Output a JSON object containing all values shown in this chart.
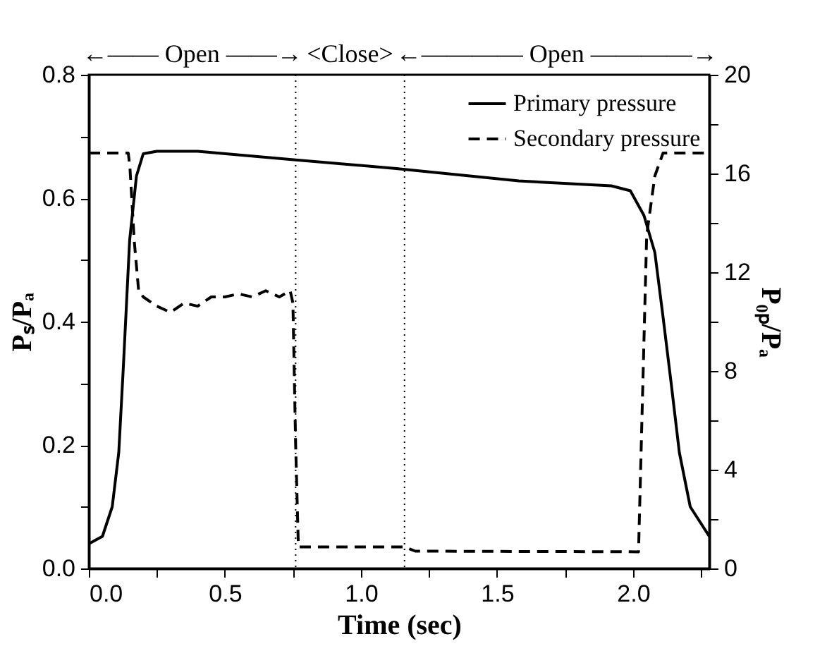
{
  "chart_data": {
    "type": "line",
    "xlabel": "Time (sec)",
    "ylabel": "Pₛ/Pₐ",
    "y2label": "P₀ₚ/Pₐ",
    "xlim": [
      0,
      2.28
    ],
    "xticks": [
      {
        "value": 0,
        "label": "0.0"
      },
      {
        "value": 0.25,
        "label": null
      },
      0.5,
      {
        "value": 0.75,
        "label": null
      },
      {
        "value": 1,
        "label": "1.0"
      },
      {
        "value": 1.25,
        "label": null
      },
      1.5,
      {
        "value": 1.75,
        "label": null
      },
      {
        "value": 2,
        "label": "2.0"
      },
      {
        "value": 2.25,
        "label": null
      }
    ],
    "ylim": [
      0,
      0.8
    ],
    "yticks": [
      {
        "value": 0,
        "label": "0.0"
      },
      {
        "value": 0.1,
        "label": null
      },
      0.2,
      {
        "value": 0.3,
        "label": null
      },
      0.4,
      {
        "value": 0.5,
        "label": null
      },
      0.6,
      {
        "value": 0.7,
        "label": null
      },
      0.8
    ],
    "y2lim": [
      0,
      20
    ],
    "y2ticks": [
      0,
      {
        "value": 2,
        "label": null
      },
      4,
      {
        "value": 6,
        "label": null
      },
      8,
      {
        "value": 10,
        "label": null
      },
      12,
      {
        "value": 14,
        "label": null
      },
      16,
      {
        "value": 18,
        "label": null
      },
      20
    ],
    "legend": "top right",
    "grid": false,
    "ref_lines": [
      {
        "axis": "x",
        "value": 0.76,
        "label": null,
        "color": "#000000",
        "line_style": "dotted"
      },
      {
        "axis": "x",
        "value": 1.16,
        "label": null,
        "color": "#000000",
        "line_style": "dotted"
      }
    ],
    "annotations": [
      "←—— Open ——→",
      "<Close>",
      "←———— Open ————→"
    ],
    "series": [
      {
        "name": "Primary pressure",
        "color": "#000000",
        "line_style": "solid",
        "axis": "y2",
        "x": [
          0,
          0.05,
          0.086,
          0.11,
          0.127,
          0.15,
          0.175,
          0.2,
          0.25,
          0.4,
          0.76,
          1.13,
          1.58,
          1.92,
          1.99,
          2.04,
          2.08,
          2.11,
          2.14,
          2.17,
          2.21,
          2.28
        ],
        "values": [
          1.0,
          1.3,
          2.5,
          4.7,
          8.2,
          13.3,
          15.9,
          16.8,
          16.9,
          16.9,
          16.55,
          16.2,
          15.7,
          15.5,
          15.3,
          14.3,
          12.8,
          10.2,
          7.5,
          4.7,
          2.5,
          1.3
        ]
      },
      {
        "name": "Secondary pressure",
        "color": "#000000",
        "line_style": "dashed",
        "x": [
          0,
          0.145,
          0.151,
          0.167,
          0.183,
          0.2,
          0.25,
          0.3,
          0.35,
          0.4,
          0.45,
          0.5,
          0.55,
          0.6,
          0.65,
          0.7,
          0.74,
          0.75,
          0.76,
          0.77,
          1.16,
          1.2,
          2.02,
          2.05,
          2.08,
          2.11,
          2.28
        ],
        "values": [
          0.673,
          0.673,
          0.65,
          0.53,
          0.45,
          0.44,
          0.425,
          0.415,
          0.43,
          0.425,
          0.44,
          0.44,
          0.445,
          0.44,
          0.45,
          0.44,
          0.45,
          0.43,
          0.2,
          0.035,
          0.035,
          0.028,
          0.027,
          0.54,
          0.636,
          0.673,
          0.673
        ]
      }
    ]
  }
}
